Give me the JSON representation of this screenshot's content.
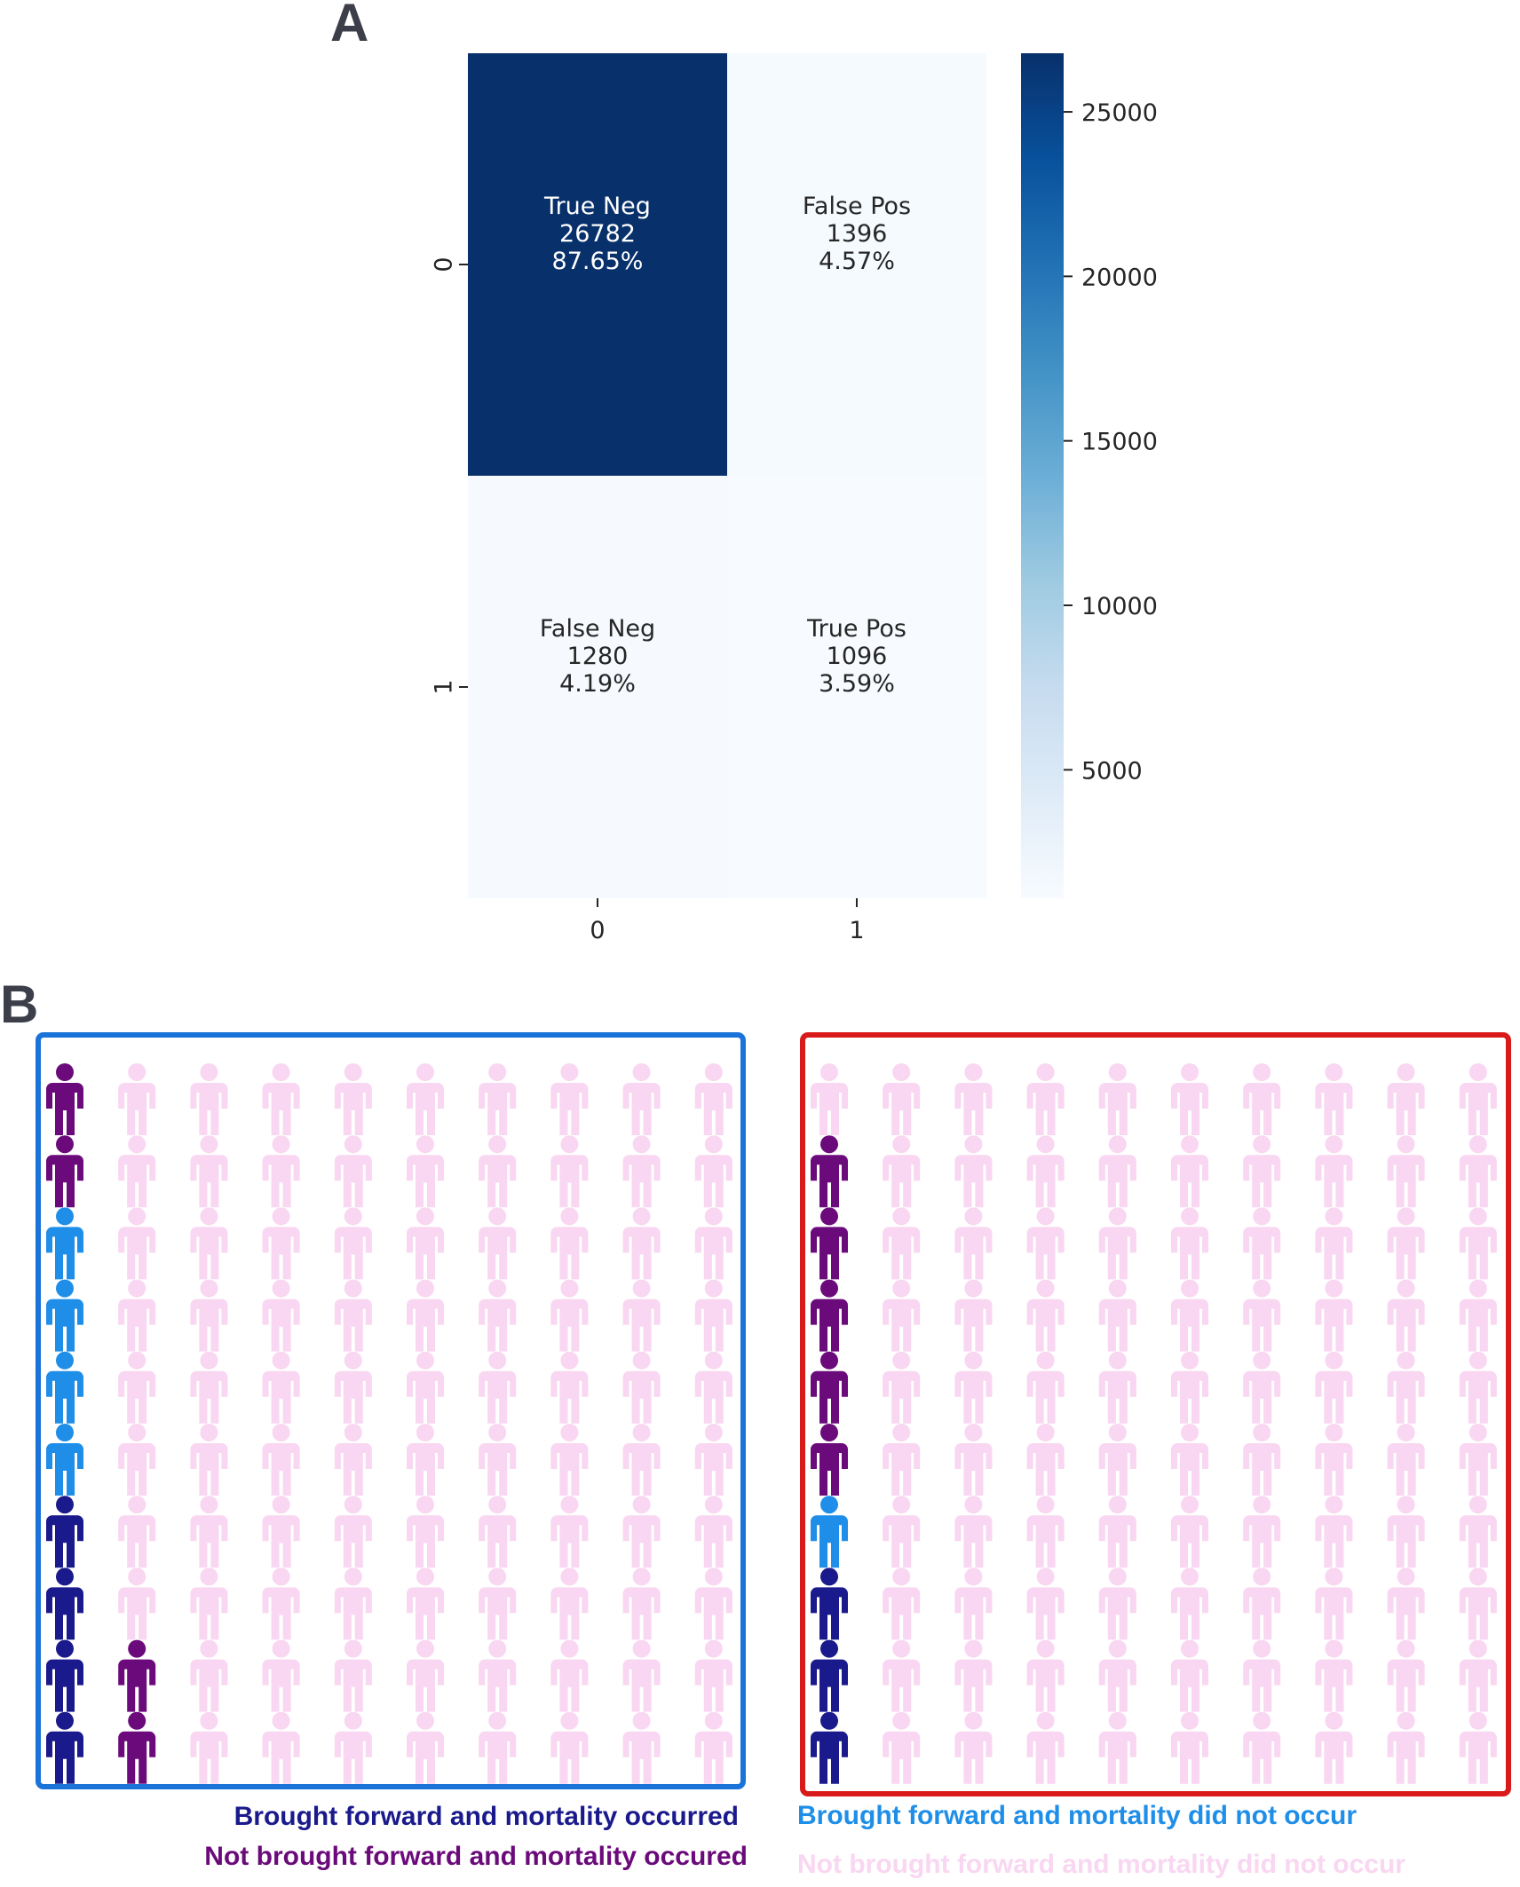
{
  "panel_a": {
    "label": "A"
  },
  "panel_b": {
    "label": "B"
  },
  "chart_data": [
    {
      "type": "heatmap",
      "title": "",
      "xlabel": "",
      "ylabel": "",
      "x_tick_labels": [
        "0",
        "1"
      ],
      "y_tick_labels": [
        "0",
        "1"
      ],
      "cells": [
        {
          "row": 0,
          "col": 0,
          "name": "True Neg",
          "count": 26782,
          "count_text": "26782",
          "percent": "87.65%"
        },
        {
          "row": 0,
          "col": 1,
          "name": "False Pos",
          "count": 1396,
          "count_text": "1396",
          "percent": "4.57%"
        },
        {
          "row": 1,
          "col": 0,
          "name": "False Neg",
          "count": 1280,
          "count_text": "1280",
          "percent": "4.19%"
        },
        {
          "row": 1,
          "col": 1,
          "name": "True Pos",
          "count": 1096,
          "count_text": "1096",
          "percent": "3.59%"
        }
      ],
      "colorbar": {
        "colormap": "Blues",
        "range": [
          1096,
          26782
        ],
        "ticks": [
          5000,
          10000,
          15000,
          20000,
          25000
        ],
        "tick_labels": [
          "5000",
          "10000",
          "15000",
          "20000",
          "25000"
        ]
      }
    },
    {
      "type": "icon_array",
      "panels": [
        {
          "name": "left",
          "border_color": "#1a73d9",
          "rows": [
            [
              "not_brought_forward_occurred",
              "nbf_not_occurred",
              "nbf_not_occurred",
              "nbf_not_occurred",
              "nbf_not_occurred",
              "nbf_not_occurred",
              "nbf_not_occurred",
              "nbf_not_occurred",
              "nbf_not_occurred",
              "nbf_not_occurred"
            ],
            [
              "not_brought_forward_occurred",
              "nbf_not_occurred",
              "nbf_not_occurred",
              "nbf_not_occurred",
              "nbf_not_occurred",
              "nbf_not_occurred",
              "nbf_not_occurred",
              "nbf_not_occurred",
              "nbf_not_occurred",
              "nbf_not_occurred"
            ],
            [
              "brought_forward_not_occurred",
              "nbf_not_occurred",
              "nbf_not_occurred",
              "nbf_not_occurred",
              "nbf_not_occurred",
              "nbf_not_occurred",
              "nbf_not_occurred",
              "nbf_not_occurred",
              "nbf_not_occurred",
              "nbf_not_occurred"
            ],
            [
              "brought_forward_not_occurred",
              "nbf_not_occurred",
              "nbf_not_occurred",
              "nbf_not_occurred",
              "nbf_not_occurred",
              "nbf_not_occurred",
              "nbf_not_occurred",
              "nbf_not_occurred",
              "nbf_not_occurred",
              "nbf_not_occurred"
            ],
            [
              "brought_forward_not_occurred",
              "nbf_not_occurred",
              "nbf_not_occurred",
              "nbf_not_occurred",
              "nbf_not_occurred",
              "nbf_not_occurred",
              "nbf_not_occurred",
              "nbf_not_occurred",
              "nbf_not_occurred",
              "nbf_not_occurred"
            ],
            [
              "brought_forward_not_occurred",
              "nbf_not_occurred",
              "nbf_not_occurred",
              "nbf_not_occurred",
              "nbf_not_occurred",
              "nbf_not_occurred",
              "nbf_not_occurred",
              "nbf_not_occurred",
              "nbf_not_occurred",
              "nbf_not_occurred"
            ],
            [
              "brought_forward_occurred",
              "nbf_not_occurred",
              "nbf_not_occurred",
              "nbf_not_occurred",
              "nbf_not_occurred",
              "nbf_not_occurred",
              "nbf_not_occurred",
              "nbf_not_occurred",
              "nbf_not_occurred",
              "nbf_not_occurred"
            ],
            [
              "brought_forward_occurred",
              "nbf_not_occurred",
              "nbf_not_occurred",
              "nbf_not_occurred",
              "nbf_not_occurred",
              "nbf_not_occurred",
              "nbf_not_occurred",
              "nbf_not_occurred",
              "nbf_not_occurred",
              "nbf_not_occurred"
            ],
            [
              "brought_forward_occurred",
              "not_brought_forward_occurred",
              "nbf_not_occurred",
              "nbf_not_occurred",
              "nbf_not_occurred",
              "nbf_not_occurred",
              "nbf_not_occurred",
              "nbf_not_occurred",
              "nbf_not_occurred",
              "nbf_not_occurred"
            ],
            [
              "brought_forward_occurred",
              "not_brought_forward_occurred",
              "nbf_not_occurred",
              "nbf_not_occurred",
              "nbf_not_occurred",
              "nbf_not_occurred",
              "nbf_not_occurred",
              "nbf_not_occurred",
              "nbf_not_occurred",
              "nbf_not_occurred"
            ]
          ]
        },
        {
          "name": "right",
          "border_color": "#d91a1a",
          "rows": [
            [
              "nbf_not_occurred",
              "nbf_not_occurred",
              "nbf_not_occurred",
              "nbf_not_occurred",
              "nbf_not_occurred",
              "nbf_not_occurred",
              "nbf_not_occurred",
              "nbf_not_occurred",
              "nbf_not_occurred",
              "nbf_not_occurred"
            ],
            [
              "not_brought_forward_occurred",
              "nbf_not_occurred",
              "nbf_not_occurred",
              "nbf_not_occurred",
              "nbf_not_occurred",
              "nbf_not_occurred",
              "nbf_not_occurred",
              "nbf_not_occurred",
              "nbf_not_occurred",
              "nbf_not_occurred"
            ],
            [
              "not_brought_forward_occurred",
              "nbf_not_occurred",
              "nbf_not_occurred",
              "nbf_not_occurred",
              "nbf_not_occurred",
              "nbf_not_occurred",
              "nbf_not_occurred",
              "nbf_not_occurred",
              "nbf_not_occurred",
              "nbf_not_occurred"
            ],
            [
              "not_brought_forward_occurred",
              "nbf_not_occurred",
              "nbf_not_occurred",
              "nbf_not_occurred",
              "nbf_not_occurred",
              "nbf_not_occurred",
              "nbf_not_occurred",
              "nbf_not_occurred",
              "nbf_not_occurred",
              "nbf_not_occurred"
            ],
            [
              "not_brought_forward_occurred",
              "nbf_not_occurred",
              "nbf_not_occurred",
              "nbf_not_occurred",
              "nbf_not_occurred",
              "nbf_not_occurred",
              "nbf_not_occurred",
              "nbf_not_occurred",
              "nbf_not_occurred",
              "nbf_not_occurred"
            ],
            [
              "not_brought_forward_occurred",
              "nbf_not_occurred",
              "nbf_not_occurred",
              "nbf_not_occurred",
              "nbf_not_occurred",
              "nbf_not_occurred",
              "nbf_not_occurred",
              "nbf_not_occurred",
              "nbf_not_occurred",
              "nbf_not_occurred"
            ],
            [
              "brought_forward_not_occurred",
              "nbf_not_occurred",
              "nbf_not_occurred",
              "nbf_not_occurred",
              "nbf_not_occurred",
              "nbf_not_occurred",
              "nbf_not_occurred",
              "nbf_not_occurred",
              "nbf_not_occurred",
              "nbf_not_occurred"
            ],
            [
              "brought_forward_occurred",
              "nbf_not_occurred",
              "nbf_not_occurred",
              "nbf_not_occurred",
              "nbf_not_occurred",
              "nbf_not_occurred",
              "nbf_not_occurred",
              "nbf_not_occurred",
              "nbf_not_occurred",
              "nbf_not_occurred"
            ],
            [
              "brought_forward_occurred",
              "nbf_not_occurred",
              "nbf_not_occurred",
              "nbf_not_occurred",
              "nbf_not_occurred",
              "nbf_not_occurred",
              "nbf_not_occurred",
              "nbf_not_occurred",
              "nbf_not_occurred",
              "nbf_not_occurred"
            ],
            [
              "brought_forward_occurred",
              "nbf_not_occurred",
              "nbf_not_occurred",
              "nbf_not_occurred",
              "nbf_not_occurred",
              "nbf_not_occurred",
              "nbf_not_occurred",
              "nbf_not_occurred",
              "nbf_not_occurred",
              "nbf_not_occurred"
            ]
          ]
        }
      ],
      "categories": {
        "brought_forward_occurred": {
          "label": "Brought forward and mortality occurred",
          "color": "#1a1a8c"
        },
        "not_brought_forward_occurred": {
          "label": "Not brought forward and mortality occured",
          "color": "#6b0a7a"
        },
        "brought_forward_not_occurred": {
          "label": "Brought forward and mortality did not occur",
          "color": "#1e8ee8"
        },
        "nbf_not_occurred": {
          "label": "Not brought forward and mortality did not occur",
          "color": "#f9d6f1"
        }
      },
      "legend": [
        {
          "key": "brought_forward_occurred",
          "label": "Brought forward and mortality occurred",
          "color": "#1a1a8c"
        },
        {
          "key": "not_brought_forward_occurred",
          "label": "Not brought forward and mortality occured",
          "color": "#6b0a7a"
        },
        {
          "key": "brought_forward_not_occurred",
          "label": "Brought forward and mortality did not occur",
          "color": "#1e8ee8"
        },
        {
          "key": "nbf_not_occurred",
          "label": "Not brought forward and mortality did not occur",
          "color": "#f9d6f1"
        }
      ]
    }
  ]
}
